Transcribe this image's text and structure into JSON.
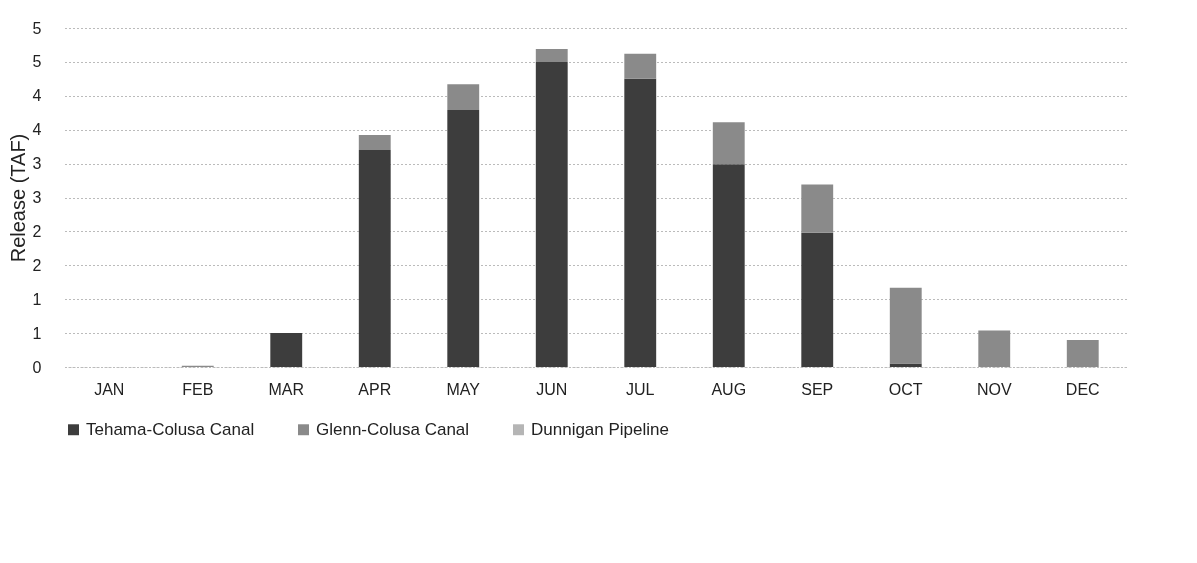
{
  "chart_data": {
    "type": "bar",
    "stacked": true,
    "ylabel": "Release (TAF)",
    "categories": [
      "JAN",
      "FEB",
      "MAR",
      "APR",
      "MAY",
      "JUN",
      "JUL",
      "AUG",
      "SEP",
      "OCT",
      "NOV",
      "DEC"
    ],
    "series": [
      {
        "name": "Tehama-Colusa Canal",
        "color": "#3d3d3d",
        "values": [
          0,
          0,
          0.5,
          3.2,
          3.79,
          4.5,
          4.25,
          2.99,
          1.98,
          0.05,
          0,
          0
        ]
      },
      {
        "name": "Glenn-Colusa Canal",
        "color": "#8a8a8a",
        "values": [
          0,
          0.02,
          0,
          0.22,
          0.38,
          0.19,
          0.37,
          0.62,
          0.71,
          1.12,
          0.54,
          0.4
        ]
      },
      {
        "name": "Dunnigan Pipeline",
        "color": "#b5b5b5",
        "values": [
          0,
          0,
          0,
          0,
          0,
          0,
          0,
          0,
          0,
          0,
          0,
          0
        ]
      }
    ],
    "ylim": [
      0,
      5
    ],
    "yticks": [
      0,
      {
        "value": 0.5,
        "label": "1"
      },
      1,
      {
        "value": 1.5,
        "label": "2"
      },
      2,
      {
        "value": 2.5,
        "label": "3"
      },
      3,
      {
        "value": 3.5,
        "label": "4"
      },
      4,
      {
        "value": 4.5,
        "label": "5"
      },
      5
    ],
    "grid": "y",
    "legend": "bottom"
  }
}
